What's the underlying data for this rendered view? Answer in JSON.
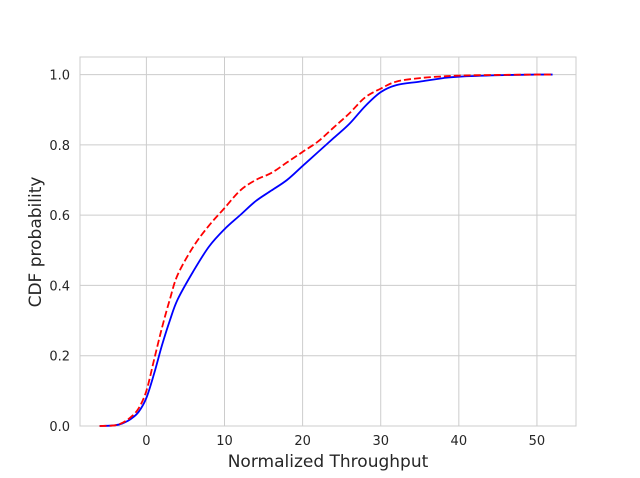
{
  "chart_data": {
    "type": "line",
    "title": "",
    "xlabel": "Normalized Throughput",
    "ylabel": "CDF probability",
    "xlim": [
      -8.5,
      55
    ],
    "ylim": [
      0,
      1.05
    ],
    "xticks": [
      0,
      10,
      20,
      30,
      40,
      50
    ],
    "yticks": [
      0.0,
      0.2,
      0.4,
      0.6,
      0.8,
      1.0
    ],
    "ytick_labels": [
      "0.0",
      "0.2",
      "0.4",
      "0.6",
      "0.8",
      "1.0"
    ],
    "grid": true,
    "legend": "none",
    "series": [
      {
        "color": "#0000ff",
        "style": "solid",
        "x": [
          -6,
          -4,
          -3,
          -2,
          -1,
          0,
          1,
          2,
          3,
          4,
          6,
          8,
          10,
          12,
          14,
          16,
          18,
          20,
          22,
          24,
          26,
          28,
          30,
          32,
          35,
          38,
          40,
          45,
          50,
          52
        ],
        "y": [
          0.0,
          0.002,
          0.008,
          0.02,
          0.04,
          0.08,
          0.15,
          0.23,
          0.3,
          0.36,
          0.44,
          0.51,
          0.56,
          0.6,
          0.64,
          0.67,
          0.7,
          0.74,
          0.78,
          0.82,
          0.86,
          0.91,
          0.95,
          0.97,
          0.98,
          0.99,
          0.994,
          0.998,
          1.0,
          1.0
        ]
      },
      {
        "color": "#ff0000",
        "style": "dashed",
        "x": [
          -6,
          -4,
          -3,
          -2,
          -1,
          0,
          1,
          2,
          3,
          4,
          6,
          8,
          10,
          12,
          14,
          16,
          18,
          20,
          22,
          24,
          26,
          28,
          30,
          32,
          35,
          38,
          40,
          45,
          50,
          52
        ],
        "y": [
          0.0,
          0.002,
          0.01,
          0.025,
          0.05,
          0.1,
          0.19,
          0.28,
          0.36,
          0.43,
          0.51,
          0.57,
          0.62,
          0.67,
          0.7,
          0.72,
          0.75,
          0.78,
          0.81,
          0.85,
          0.89,
          0.935,
          0.96,
          0.98,
          0.99,
          0.995,
          0.997,
          0.999,
          1.0,
          1.0
        ]
      }
    ]
  }
}
